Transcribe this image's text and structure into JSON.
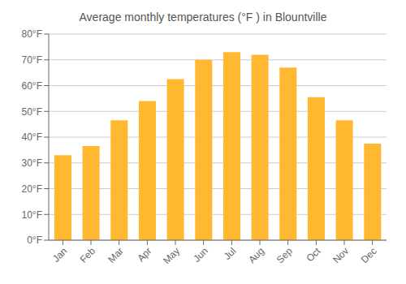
{
  "chart_data": {
    "type": "bar",
    "title": "Average monthly temperatures (°F ) in Blountville",
    "categories": [
      "Jan",
      "Feb",
      "Mar",
      "Apr",
      "May",
      "Jun",
      "Jul",
      "Aug",
      "Sep",
      "Oct",
      "Nov",
      "Dec"
    ],
    "values": [
      33,
      36.5,
      46.5,
      54,
      62.5,
      70,
      73,
      72,
      67,
      55.5,
      46.5,
      37.5
    ],
    "color": "#FFB830",
    "ylim": [
      0,
      80
    ],
    "yticks": [
      {
        "value": 0,
        "label": "0°F"
      },
      {
        "value": 10,
        "label": "10°F"
      },
      {
        "value": 20,
        "label": "20°F"
      },
      {
        "value": 30,
        "label": "30°F"
      },
      {
        "value": 40,
        "label": "40°F"
      },
      {
        "value": 50,
        "label": "50°F"
      },
      {
        "value": 60,
        "label": "60°F"
      },
      {
        "value": 70,
        "label": "70°F"
      },
      {
        "value": 80,
        "label": "80°F"
      }
    ],
    "grid": true
  }
}
